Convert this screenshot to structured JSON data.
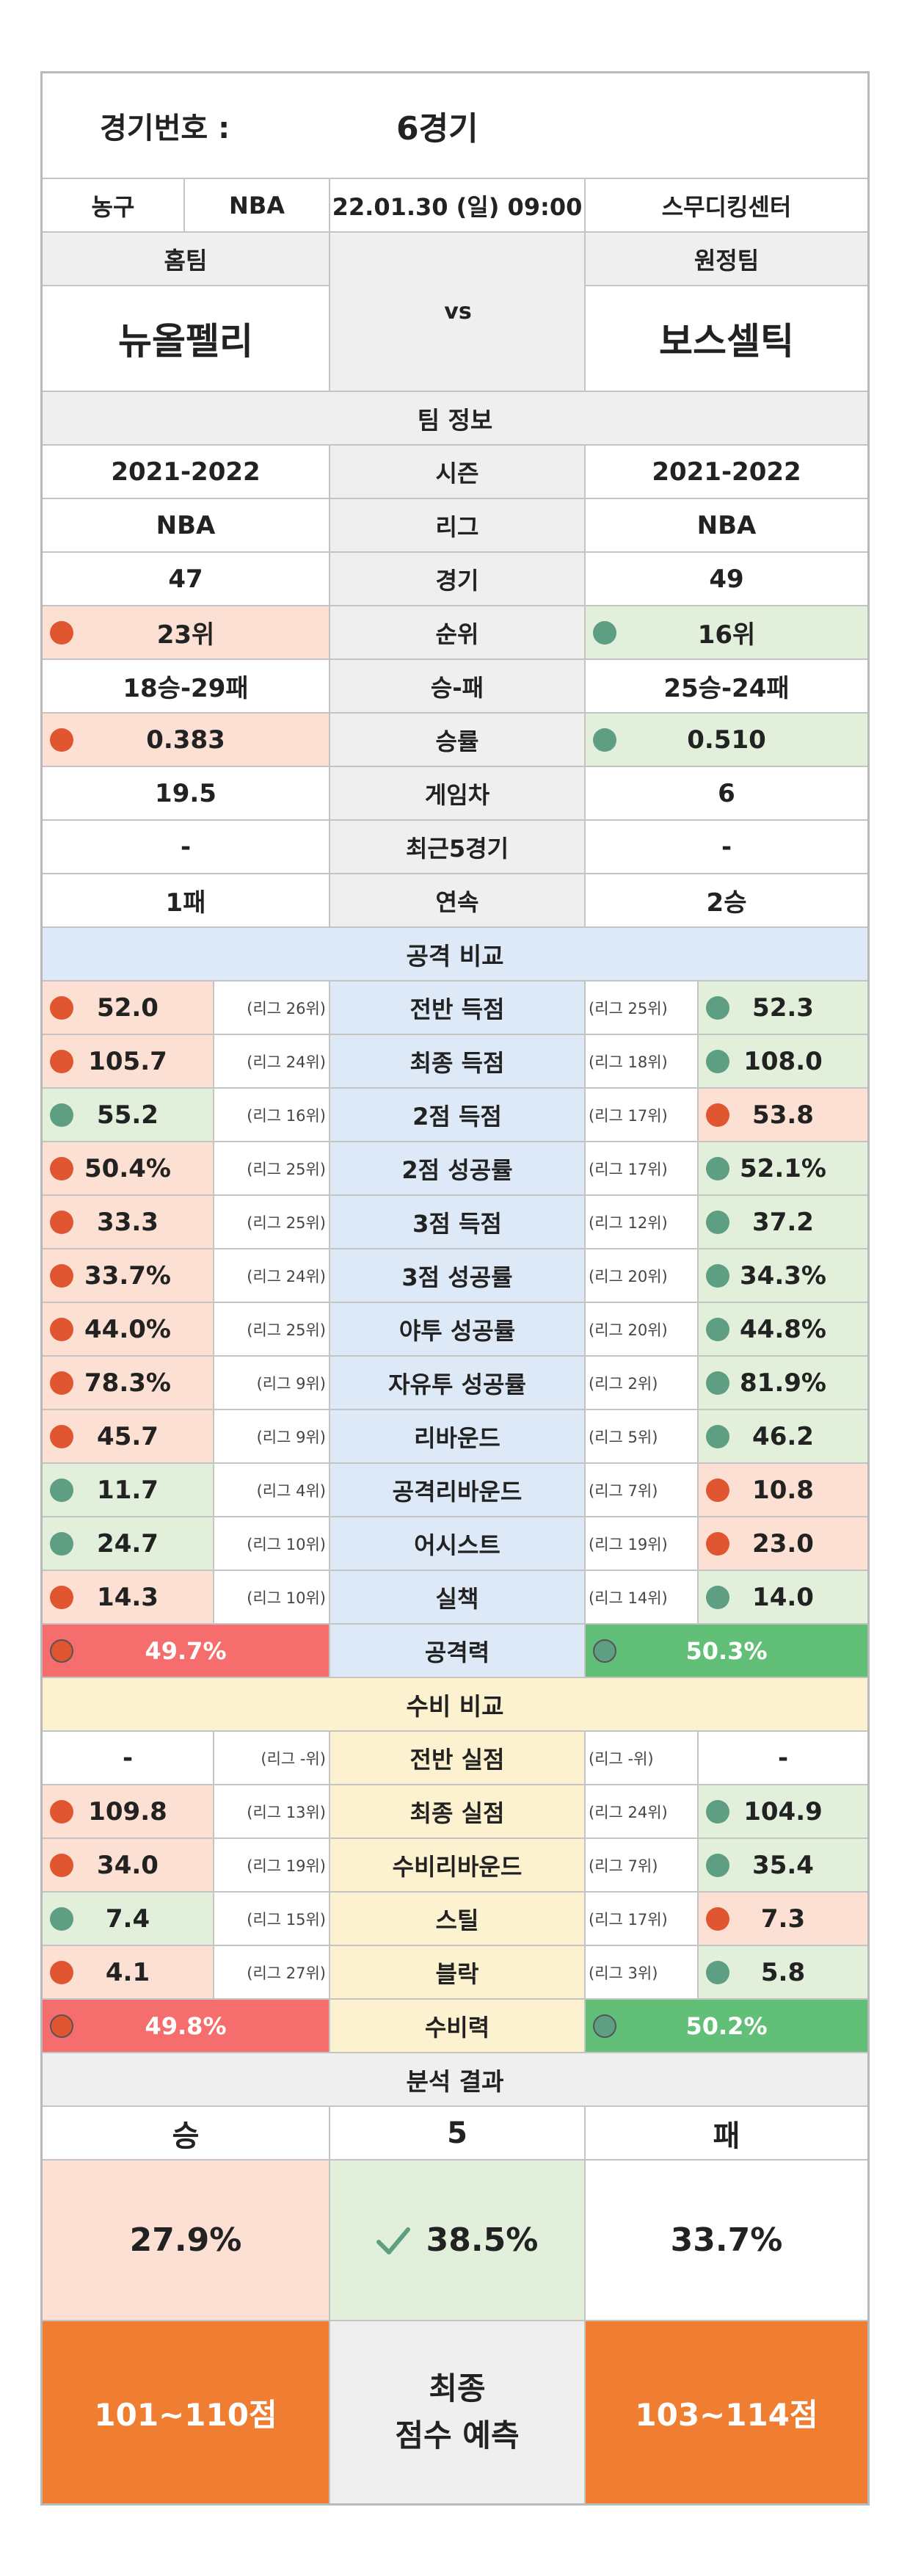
{
  "header": {
    "game_no_label": "경기번호 :",
    "game_no_value": "6경기"
  },
  "info": {
    "sport": "농구",
    "league": "NBA",
    "datetime": "22.01.30 (일) 09:00",
    "venue": "스무디킹센터"
  },
  "teams": {
    "home_label": "홈팀",
    "away_label": "원정팀",
    "home_name": "뉴올펠리",
    "away_name": "보스셀틱",
    "vs": "vs"
  },
  "team_info": {
    "title": "팀 정보",
    "rows": [
      {
        "label": "시즌",
        "home": "2021-2022",
        "away": "2021-2022",
        "home_dot": "",
        "away_dot": ""
      },
      {
        "label": "리그",
        "home": "NBA",
        "away": "NBA",
        "home_dot": "",
        "away_dot": ""
      },
      {
        "label": "경기",
        "home": "47",
        "away": "49",
        "home_dot": "",
        "away_dot": ""
      },
      {
        "label": "순위",
        "home": "23위",
        "away": "16위",
        "home_dot": "red",
        "away_dot": "green"
      },
      {
        "label": "승-패",
        "home": "18승-29패",
        "away": "25승-24패",
        "home_dot": "",
        "away_dot": ""
      },
      {
        "label": "승률",
        "home": "0.383",
        "away": "0.510",
        "home_dot": "red",
        "away_dot": "green"
      },
      {
        "label": "게임차",
        "home": "19.5",
        "away": "6",
        "home_dot": "",
        "away_dot": ""
      },
      {
        "label": "최근5경기",
        "home": "-",
        "away": "-",
        "home_dot": "",
        "away_dot": ""
      },
      {
        "label": "연속",
        "home": "1패",
        "away": "2승",
        "home_dot": "",
        "away_dot": ""
      }
    ]
  },
  "attack": {
    "title": "공격 비교",
    "rows": [
      {
        "label": "전반 득점",
        "home": "52.0",
        "home_rank": "(리그 26위)",
        "away": "52.3",
        "away_rank": "(리그 25위)",
        "home_dot": "red",
        "away_dot": "green"
      },
      {
        "label": "최종 득점",
        "home": "105.7",
        "home_rank": "(리그 24위)",
        "away": "108.0",
        "away_rank": "(리그 18위)",
        "home_dot": "red",
        "away_dot": "green"
      },
      {
        "label": "2점 득점",
        "home": "55.2",
        "home_rank": "(리그 16위)",
        "away": "53.8",
        "away_rank": "(리그 17위)",
        "home_dot": "green",
        "away_dot": "red"
      },
      {
        "label": "2점 성공률",
        "home": "50.4%",
        "home_rank": "(리그 25위)",
        "away": "52.1%",
        "away_rank": "(리그 17위)",
        "home_dot": "red",
        "away_dot": "green"
      },
      {
        "label": "3점 득점",
        "home": "33.3",
        "home_rank": "(리그 25위)",
        "away": "37.2",
        "away_rank": "(리그 12위)",
        "home_dot": "red",
        "away_dot": "green"
      },
      {
        "label": "3점 성공률",
        "home": "33.7%",
        "home_rank": "(리그 24위)",
        "away": "34.3%",
        "away_rank": "(리그 20위)",
        "home_dot": "red",
        "away_dot": "green"
      },
      {
        "label": "야투 성공률",
        "home": "44.0%",
        "home_rank": "(리그 25위)",
        "away": "44.8%",
        "away_rank": "(리그 20위)",
        "home_dot": "red",
        "away_dot": "green"
      },
      {
        "label": "자유투 성공률",
        "home": "78.3%",
        "home_rank": "(리그 9위)",
        "away": "81.9%",
        "away_rank": "(리그 2위)",
        "home_dot": "red",
        "away_dot": "green"
      },
      {
        "label": "리바운드",
        "home": "45.7",
        "home_rank": "(리그 9위)",
        "away": "46.2",
        "away_rank": "(리그 5위)",
        "home_dot": "red",
        "away_dot": "green"
      },
      {
        "label": "공격리바운드",
        "home": "11.7",
        "home_rank": "(리그 4위)",
        "away": "10.8",
        "away_rank": "(리그 7위)",
        "home_dot": "green",
        "away_dot": "red"
      },
      {
        "label": "어시스트",
        "home": "24.7",
        "home_rank": "(리그 10위)",
        "away": "23.0",
        "away_rank": "(리그 19위)",
        "home_dot": "green",
        "away_dot": "red"
      },
      {
        "label": "실책",
        "home": "14.3",
        "home_rank": "(리그 10위)",
        "away": "14.0",
        "away_rank": "(리그 14위)",
        "home_dot": "red",
        "away_dot": "green"
      }
    ],
    "total": {
      "label": "공격력",
      "home": "49.7%",
      "away": "50.3%"
    }
  },
  "defense": {
    "title": "수비 비교",
    "rows": [
      {
        "label": "전반 실점",
        "home": "-",
        "home_rank": "(리그 -위)",
        "away": "-",
        "away_rank": "(리그 -위)",
        "home_dot": "",
        "away_dot": ""
      },
      {
        "label": "최종 실점",
        "home": "109.8",
        "home_rank": "(리그 13위)",
        "away": "104.9",
        "away_rank": "(리그 24위)",
        "home_dot": "red",
        "away_dot": "green"
      },
      {
        "label": "수비리바운드",
        "home": "34.0",
        "home_rank": "(리그 19위)",
        "away": "35.4",
        "away_rank": "(리그 7위)",
        "home_dot": "red",
        "away_dot": "green"
      },
      {
        "label": "스틸",
        "home": "7.4",
        "home_rank": "(리그 15위)",
        "away": "7.3",
        "away_rank": "(리그 17위)",
        "home_dot": "green",
        "away_dot": "red"
      },
      {
        "label": "블락",
        "home": "4.1",
        "home_rank": "(리그 27위)",
        "away": "5.8",
        "away_rank": "(리그 3위)",
        "home_dot": "red",
        "away_dot": "green"
      }
    ],
    "total": {
      "label": "수비력",
      "home": "49.8%",
      "away": "50.2%"
    }
  },
  "result": {
    "title": "분석 결과",
    "win_label": "승",
    "draw_label": "5",
    "lose_label": "패",
    "win_pct": "27.9%",
    "draw_pct": "38.5%",
    "lose_pct": "33.7%",
    "home_score": "101~110점",
    "final_line1": "최종",
    "final_line2": "점수 예측",
    "away_score": "103~114점"
  },
  "colors": {
    "gray": "#efefef",
    "home_bad": "#fbe0d3",
    "away_good": "#e2efda",
    "attack": "#dde9f6",
    "defense": "#fdf2cf",
    "red_bar": "#f56d6d",
    "green_bar": "#62bf77",
    "orange": "#ef7e33",
    "check": "#5e9e82"
  }
}
